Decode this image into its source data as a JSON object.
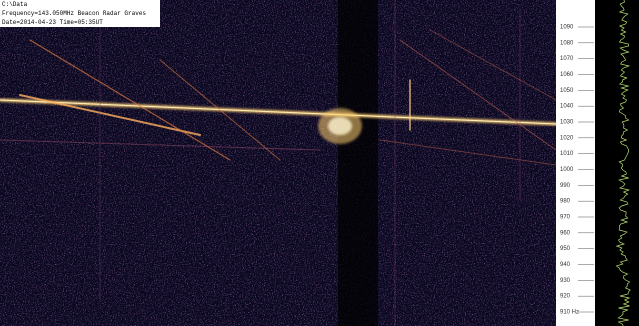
{
  "header": {
    "path": "C:\\Data",
    "frequency": "Frequency=143.050MHz Beacon Radar Graves",
    "date": "Date=2014-04-23 Time=05:35UT"
  },
  "scale": {
    "labels": [
      "1090",
      "1080",
      "1070",
      "1060",
      "1050",
      "1040",
      "1030",
      "1020",
      "1010",
      "1000",
      "990",
      "980",
      "970",
      "960",
      "950",
      "940",
      "930",
      "920",
      "910 Hz"
    ]
  }
}
